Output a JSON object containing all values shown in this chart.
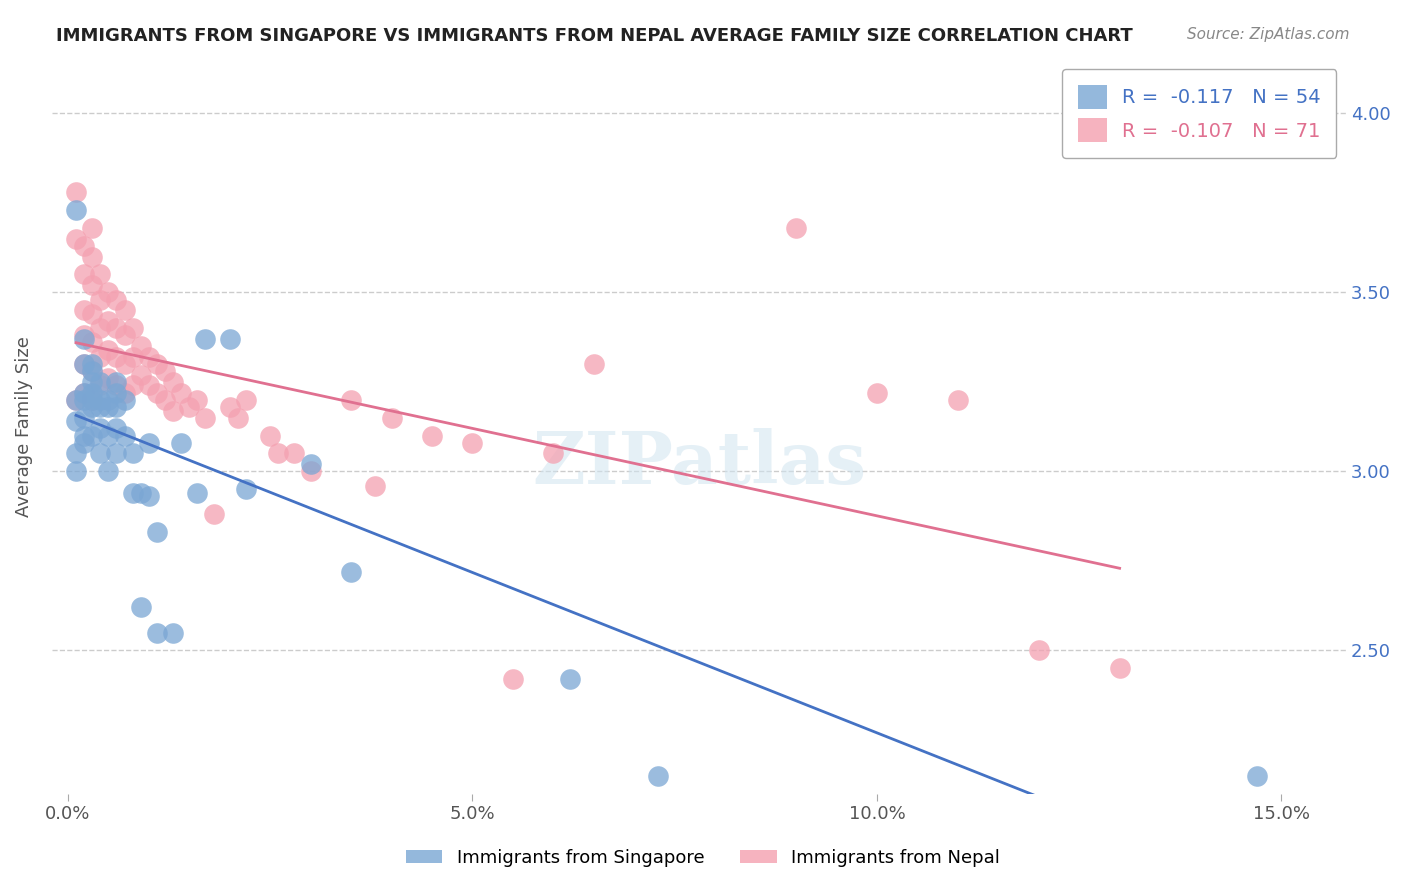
{
  "title": "IMMIGRANTS FROM SINGAPORE VS IMMIGRANTS FROM NEPAL AVERAGE FAMILY SIZE CORRELATION CHART",
  "source": "Source: ZipAtlas.com",
  "ylabel": "Average Family Size",
  "xlabel_ticks": [
    "0.0%",
    "5.0%",
    "10.0%",
    "15.0%"
  ],
  "xlabel_values": [
    0.0,
    0.05,
    0.1,
    0.15
  ],
  "ylim": [
    2.1,
    4.15
  ],
  "xlim": [
    -0.002,
    0.158
  ],
  "yticks": [
    2.5,
    3.0,
    3.5,
    4.0
  ],
  "right_ytick_color": "#4472c4",
  "singapore_color": "#7aa6d4",
  "nepal_color": "#f4a0b0",
  "singapore_line_color": "#4472c4",
  "nepal_line_color": "#e07090",
  "R_singapore": -0.117,
  "N_singapore": 54,
  "R_nepal": -0.107,
  "N_nepal": 71,
  "watermark": "ZIPatlas",
  "singapore_scatter_x": [
    0.001,
    0.001,
    0.001,
    0.001,
    0.001,
    0.002,
    0.002,
    0.002,
    0.002,
    0.002,
    0.002,
    0.002,
    0.003,
    0.003,
    0.003,
    0.003,
    0.003,
    0.003,
    0.003,
    0.004,
    0.004,
    0.004,
    0.004,
    0.004,
    0.005,
    0.005,
    0.005,
    0.005,
    0.006,
    0.006,
    0.006,
    0.006,
    0.006,
    0.007,
    0.007,
    0.008,
    0.008,
    0.009,
    0.009,
    0.01,
    0.01,
    0.011,
    0.011,
    0.013,
    0.014,
    0.016,
    0.017,
    0.02,
    0.022,
    0.03,
    0.035,
    0.062,
    0.073,
    0.147
  ],
  "singapore_scatter_y": [
    3.73,
    3.2,
    3.14,
    3.05,
    3.0,
    3.37,
    3.3,
    3.22,
    3.2,
    3.15,
    3.1,
    3.08,
    3.3,
    3.28,
    3.25,
    3.22,
    3.2,
    3.18,
    3.1,
    3.25,
    3.2,
    3.18,
    3.12,
    3.05,
    3.2,
    3.18,
    3.1,
    3.0,
    3.25,
    3.22,
    3.18,
    3.12,
    3.05,
    3.2,
    3.1,
    3.05,
    2.94,
    2.94,
    2.62,
    3.08,
    2.93,
    2.83,
    2.55,
    2.55,
    3.08,
    2.94,
    3.37,
    3.37,
    2.95,
    3.02,
    2.72,
    2.42,
    2.15,
    2.15
  ],
  "nepal_scatter_x": [
    0.001,
    0.001,
    0.001,
    0.002,
    0.002,
    0.002,
    0.002,
    0.002,
    0.002,
    0.003,
    0.003,
    0.003,
    0.003,
    0.003,
    0.003,
    0.003,
    0.004,
    0.004,
    0.004,
    0.004,
    0.004,
    0.005,
    0.005,
    0.005,
    0.005,
    0.006,
    0.006,
    0.006,
    0.006,
    0.007,
    0.007,
    0.007,
    0.007,
    0.008,
    0.008,
    0.008,
    0.009,
    0.009,
    0.01,
    0.01,
    0.011,
    0.011,
    0.012,
    0.012,
    0.013,
    0.013,
    0.014,
    0.015,
    0.016,
    0.017,
    0.018,
    0.02,
    0.021,
    0.022,
    0.025,
    0.026,
    0.028,
    0.03,
    0.035,
    0.038,
    0.04,
    0.045,
    0.05,
    0.055,
    0.06,
    0.065,
    0.09,
    0.1,
    0.11,
    0.12,
    0.13
  ],
  "nepal_scatter_y": [
    3.78,
    3.65,
    3.2,
    3.63,
    3.55,
    3.45,
    3.38,
    3.3,
    3.22,
    3.68,
    3.6,
    3.52,
    3.44,
    3.36,
    3.28,
    3.2,
    3.55,
    3.48,
    3.4,
    3.32,
    3.24,
    3.5,
    3.42,
    3.34,
    3.26,
    3.48,
    3.4,
    3.32,
    3.24,
    3.45,
    3.38,
    3.3,
    3.22,
    3.4,
    3.32,
    3.24,
    3.35,
    3.27,
    3.32,
    3.24,
    3.3,
    3.22,
    3.28,
    3.2,
    3.25,
    3.17,
    3.22,
    3.18,
    3.2,
    3.15,
    2.88,
    3.18,
    3.15,
    3.2,
    3.1,
    3.05,
    3.05,
    3.0,
    3.2,
    2.96,
    3.15,
    3.1,
    3.08,
    2.42,
    3.05,
    3.3,
    3.68,
    3.22,
    3.2,
    2.5,
    2.45
  ]
}
